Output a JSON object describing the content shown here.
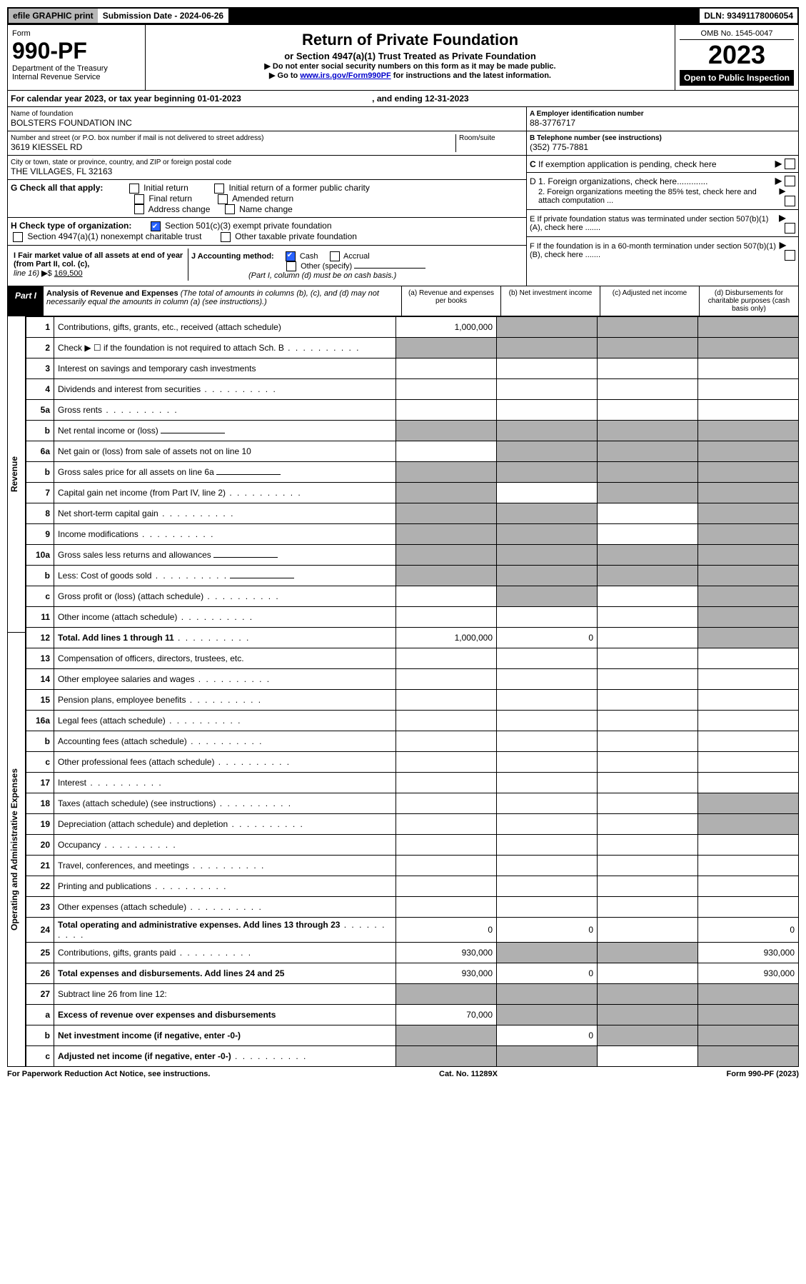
{
  "topbar": {
    "efile": "efile GRAPHIC print",
    "subdate_label": "Submission Date - 2024-06-26",
    "dln": "DLN: 93491178006054"
  },
  "header": {
    "form_word": "Form",
    "form_num": "990-PF",
    "dept": "Department of the Treasury",
    "irs": "Internal Revenue Service",
    "title": "Return of Private Foundation",
    "subtitle": "or Section 4947(a)(1) Trust Treated as Private Foundation",
    "instr1": "▶ Do not enter social security numbers on this form as it may be made public.",
    "instr2_pre": "▶ Go to ",
    "instr2_link": "www.irs.gov/Form990PF",
    "instr2_post": " for instructions and the latest information.",
    "omb": "OMB No. 1545-0047",
    "year": "2023",
    "open": "Open to Public Inspection"
  },
  "cal": {
    "text": "For calendar year 2023, or tax year beginning 01-01-2023",
    "mid": ", and ending 12-31-2023"
  },
  "info": {
    "name_label": "Name of foundation",
    "name": "BOLSTERS FOUNDATION INC",
    "addr_label": "Number and street (or P.O. box number if mail is not delivered to street address)",
    "room_label": "Room/suite",
    "addr": "3619 KIESSEL RD",
    "city_label": "City or town, state or province, country, and ZIP or foreign postal code",
    "city": "THE VILLAGES, FL  32163",
    "ein_label": "A Employer identification number",
    "ein": "88-3776717",
    "tel_label": "B Telephone number (see instructions)",
    "tel": "(352) 775-7881",
    "c": "C If exemption application is pending, check here",
    "d1": "D 1. Foreign organizations, check here.............",
    "d2": "2. Foreign organizations meeting the 85% test, check here and attach computation ...",
    "e": "E  If private foundation status was terminated under section 507(b)(1)(A), check here .......",
    "f": "F  If the foundation is in a 60-month termination under section 507(b)(1)(B), check here ......."
  },
  "g": {
    "label": "G Check all that apply:",
    "opts": [
      "Initial return",
      "Initial return of a former public charity",
      "Final return",
      "Amended return",
      "Address change",
      "Name change"
    ]
  },
  "h": {
    "label": "H Check type of organization:",
    "opt1": "Section 501(c)(3) exempt private foundation",
    "opt2": "Section 4947(a)(1) nonexempt charitable trust",
    "opt3": "Other taxable private foundation"
  },
  "i": {
    "label": "I Fair market value of all assets at end of year (from Part II, col. (c),",
    "line": "line 16)",
    "amount": "169,500"
  },
  "j": {
    "label": "J Accounting method:",
    "cash": "Cash",
    "accrual": "Accrual",
    "other": "Other (specify)",
    "note": "(Part I, column (d) must be on cash basis.)"
  },
  "part1": {
    "label": "Part I",
    "title": "Analysis of Revenue and Expenses",
    "sub": "(The total of amounts in columns (b), (c), and (d) may not necessarily equal the amounts in column (a) (see instructions).)",
    "cols": {
      "a": "(a)   Revenue and expenses per books",
      "b": "(b)   Net investment income",
      "c": "(c)   Adjusted net income",
      "d": "(d)   Disbursements for charitable purposes (cash basis only)"
    }
  },
  "vert": {
    "rev": "Revenue",
    "exp": "Operating and Administrative Expenses"
  },
  "rows": [
    {
      "n": "1",
      "d": "Contributions, gifts, grants, etc., received (attach schedule)",
      "a": "1,000,000",
      "shade_b": true,
      "shade_c": true,
      "shade_d": true
    },
    {
      "n": "2",
      "d": "Check ▶ ☐ if the foundation is not required to attach Sch. B",
      "dots": true,
      "shade_a": true,
      "shade_b": true,
      "shade_c": true,
      "shade_d": true,
      "noborder": true
    },
    {
      "n": "3",
      "d": "Interest on savings and temporary cash investments"
    },
    {
      "n": "4",
      "d": "Dividends and interest from securities",
      "dots": true
    },
    {
      "n": "5a",
      "d": "Gross rents",
      "dots": true
    },
    {
      "n": "b",
      "d": "Net rental income or (loss)",
      "inline_box": true,
      "shade_a": true,
      "shade_b": true,
      "shade_c": true,
      "shade_d": true
    },
    {
      "n": "6a",
      "d": "Net gain or (loss) from sale of assets not on line 10",
      "shade_b": true,
      "shade_c": true,
      "shade_d": true
    },
    {
      "n": "b",
      "d": "Gross sales price for all assets on line 6a",
      "inline_box": true,
      "shade_a": true,
      "shade_b": true,
      "shade_c": true,
      "shade_d": true
    },
    {
      "n": "7",
      "d": "Capital gain net income (from Part IV, line 2)",
      "dots": true,
      "shade_a": true,
      "shade_c": true,
      "shade_d": true
    },
    {
      "n": "8",
      "d": "Net short-term capital gain",
      "dots": true,
      "shade_a": true,
      "shade_b": true,
      "shade_d": true
    },
    {
      "n": "9",
      "d": "Income modifications",
      "dots": true,
      "shade_a": true,
      "shade_b": true,
      "shade_d": true
    },
    {
      "n": "10a",
      "d": "Gross sales less returns and allowances",
      "inline_box": true,
      "shade_a": true,
      "shade_b": true,
      "shade_c": true,
      "shade_d": true
    },
    {
      "n": "b",
      "d": "Less: Cost of goods sold",
      "dots": true,
      "inline_box": true,
      "shade_a": true,
      "shade_b": true,
      "shade_c": true,
      "shade_d": true
    },
    {
      "n": "c",
      "d": "Gross profit or (loss) (attach schedule)",
      "dots": true,
      "shade_b": true,
      "shade_d": true
    },
    {
      "n": "11",
      "d": "Other income (attach schedule)",
      "dots": true,
      "shade_d": true
    },
    {
      "n": "12",
      "d": "Total. Add lines 1 through 11",
      "dots": true,
      "bold": true,
      "a": "1,000,000",
      "b": "0",
      "shade_d": true
    },
    {
      "n": "13",
      "d": "Compensation of officers, directors, trustees, etc."
    },
    {
      "n": "14",
      "d": "Other employee salaries and wages",
      "dots": true
    },
    {
      "n": "15",
      "d": "Pension plans, employee benefits",
      "dots": true
    },
    {
      "n": "16a",
      "d": "Legal fees (attach schedule)",
      "dots": true
    },
    {
      "n": "b",
      "d": "Accounting fees (attach schedule)",
      "dots": true
    },
    {
      "n": "c",
      "d": "Other professional fees (attach schedule)",
      "dots": true
    },
    {
      "n": "17",
      "d": "Interest",
      "dots": true
    },
    {
      "n": "18",
      "d": "Taxes (attach schedule) (see instructions)",
      "dots": true,
      "shade_d": true
    },
    {
      "n": "19",
      "d": "Depreciation (attach schedule) and depletion",
      "dots": true,
      "shade_d": true
    },
    {
      "n": "20",
      "d": "Occupancy",
      "dots": true
    },
    {
      "n": "21",
      "d": "Travel, conferences, and meetings",
      "dots": true
    },
    {
      "n": "22",
      "d": "Printing and publications",
      "dots": true
    },
    {
      "n": "23",
      "d": "Other expenses (attach schedule)",
      "dots": true
    },
    {
      "n": "24",
      "d": "Total operating and administrative expenses. Add lines 13 through 23",
      "dots": true,
      "bold": true,
      "a": "0",
      "b": "0",
      "dv": "0"
    },
    {
      "n": "25",
      "d": "Contributions, gifts, grants paid",
      "dots": true,
      "a": "930,000",
      "shade_b": true,
      "shade_c": true,
      "dv": "930,000"
    },
    {
      "n": "26",
      "d": "Total expenses and disbursements. Add lines 24 and 25",
      "bold": true,
      "a": "930,000",
      "b": "0",
      "dv": "930,000"
    },
    {
      "n": "27",
      "d": "Subtract line 26 from line 12:",
      "shade_a": true,
      "shade_b": true,
      "shade_c": true,
      "shade_d": true
    },
    {
      "n": "a",
      "d": "Excess of revenue over expenses and disbursements",
      "bold": true,
      "a": "70,000",
      "shade_b": true,
      "shade_c": true,
      "shade_d": true
    },
    {
      "n": "b",
      "d": "Net investment income (if negative, enter -0-)",
      "bold": true,
      "shade_a": true,
      "b": "0",
      "shade_c": true,
      "shade_d": true
    },
    {
      "n": "c",
      "d": "Adjusted net income (if negative, enter -0-)",
      "dots": true,
      "bold": true,
      "shade_a": true,
      "shade_b": true,
      "shade_d": true
    }
  ],
  "footer": {
    "left": "For Paperwork Reduction Act Notice, see instructions.",
    "mid": "Cat. No. 11289X",
    "right": "Form 990-PF (2023)"
  }
}
